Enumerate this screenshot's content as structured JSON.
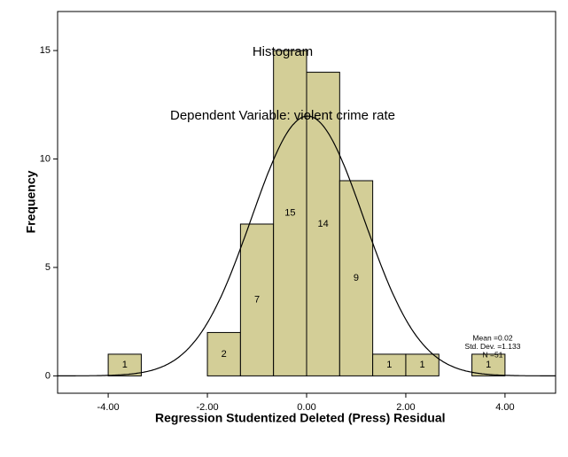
{
  "chart_data": {
    "type": "histogram",
    "title": "Histogram",
    "subtitle": "Dependent Variable: violent crime rate",
    "x_label": "Regression Studentized Deleted (Press) Residual",
    "y_label": "Frequency",
    "bins": [
      -4.0,
      -3.333,
      -2.667,
      -2.0,
      -1.333,
      -0.667,
      0.0,
      0.667,
      1.333,
      2.0,
      2.667,
      3.333,
      4.0
    ],
    "values": [
      1,
      0,
      0,
      2,
      7,
      15,
      14,
      9,
      1,
      1,
      0,
      1
    ],
    "color": "#d3ce97",
    "xlim": [
      -5.02,
      5.02
    ],
    "ylim": [
      -0.8,
      16.8
    ],
    "xticks": [
      {
        "value": -4,
        "label": "-4.00"
      },
      {
        "value": -2,
        "label": "-2.00"
      },
      {
        "value": 0,
        "label": "0.00"
      },
      {
        "value": 2,
        "label": "2.00"
      },
      {
        "value": 4,
        "label": "4.00"
      }
    ],
    "yticks": [
      0,
      5,
      10,
      15
    ],
    "normal_curve": {
      "mean": 0.02,
      "sd": 1.133,
      "n": 51
    },
    "stats_labels": [
      "Mean =0.02",
      "Std. Dev. =1.133",
      "N =51"
    ]
  }
}
